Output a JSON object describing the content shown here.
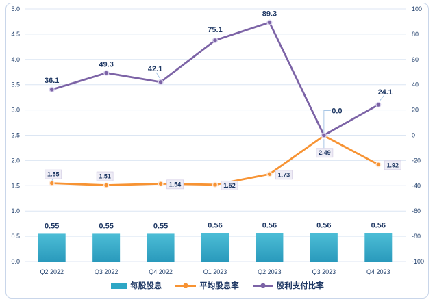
{
  "chart_data": {
    "type": "combo",
    "categories": [
      "Q2 2022",
      "Q3 2022",
      "Q4 2022",
      "Q1 2023",
      "Q2 2023",
      "Q3 2023",
      "Q4 2023"
    ],
    "left_axis": {
      "min": 0,
      "max": 5,
      "step": 0.5,
      "ticks": [
        "5.0",
        "4.5",
        "4.0",
        "3.5",
        "3.0",
        "2.5",
        "2.0",
        "1.5",
        "1.0",
        "0.5",
        "0.0"
      ]
    },
    "right_axis": {
      "min": -100,
      "max": 100,
      "step": 20,
      "ticks": [
        "100",
        "80",
        "60",
        "40",
        "20",
        "0",
        "-20",
        "-40",
        "-60",
        "-80",
        "-100"
      ]
    },
    "grid": true,
    "legend_position": "bottom",
    "series": [
      {
        "name": "每股股息",
        "chart_type": "bar",
        "axis": "left",
        "values": [
          0.55,
          0.55,
          0.55,
          0.56,
          0.56,
          0.56,
          0.56
        ],
        "labels": [
          {
            "text": "0.55"
          },
          {
            "text": "0.55"
          },
          {
            "text": "0.55"
          },
          {
            "text": "0.56"
          },
          {
            "text": "0.56"
          },
          {
            "text": "0.56"
          },
          {
            "text": "0.56"
          }
        ]
      },
      {
        "name": "平均股息率",
        "chart_type": "line",
        "axis": "left",
        "values": [
          1.55,
          1.51,
          1.54,
          1.52,
          1.73,
          2.49,
          1.92
        ],
        "labels": [
          {
            "text": "1.55",
            "dx": 2,
            "dy": -13,
            "boxed": true,
            "leader": "diag"
          },
          {
            "text": "1.51",
            "dx": -2,
            "dy": -13,
            "boxed": true,
            "leader": "none"
          },
          {
            "text": "1.54",
            "dx": 21,
            "dy": 1,
            "boxed": true,
            "leader": "none"
          },
          {
            "text": "1.52",
            "dx": 21,
            "dy": 1,
            "boxed": true,
            "leader": "none"
          },
          {
            "text": "1.73",
            "dx": 21,
            "dy": 1,
            "boxed": true,
            "leader": "none"
          },
          {
            "text": "2.49",
            "dx": 1,
            "dy": 25,
            "boxed": true,
            "leader": "vert"
          },
          {
            "text": "1.92",
            "dx": 21,
            "dy": 1,
            "boxed": true,
            "leader": "none"
          }
        ]
      },
      {
        "name": "股利支付比率",
        "chart_type": "line",
        "axis": "right",
        "values": [
          36.1,
          49.3,
          42.1,
          75.1,
          89.3,
          0.0,
          24.1
        ],
        "labels": [
          {
            "text": "36.1",
            "dx": 0,
            "dy": -14,
            "leader": "none"
          },
          {
            "text": "49.3",
            "dx": 0,
            "dy": -13,
            "leader": "none"
          },
          {
            "text": "42.1",
            "dx": -8,
            "dy": -20,
            "leader": "diag"
          },
          {
            "text": "75.1",
            "dx": 0,
            "dy": -16,
            "leader": "none"
          },
          {
            "text": "89.3",
            "dx": 0,
            "dy": -13,
            "leader": "none"
          },
          {
            "text": "0.0",
            "dx": 19,
            "dy": -36,
            "leader": "elbow"
          },
          {
            "text": "24.1",
            "dx": 10,
            "dy": -19,
            "leader": "diag"
          }
        ]
      }
    ],
    "colors": {
      "bar_top": "#4cbdd6",
      "bar_bottom": "#2a9abc",
      "bar_flat": "#2ea7c5",
      "line_yield": "#f79333",
      "line_payout": "#7c63a6",
      "label_text": "#1f3864",
      "tick_text": "#24426e",
      "grid": "#dce6f3",
      "leader": "#a8c6e5",
      "box_fill": "#efedf6",
      "box_border": "#d7d0e6",
      "card_border": "#c9d6ea",
      "marker_ring_yield": "#fde9d9",
      "marker_ring_payout": "#d9d2ec"
    }
  }
}
